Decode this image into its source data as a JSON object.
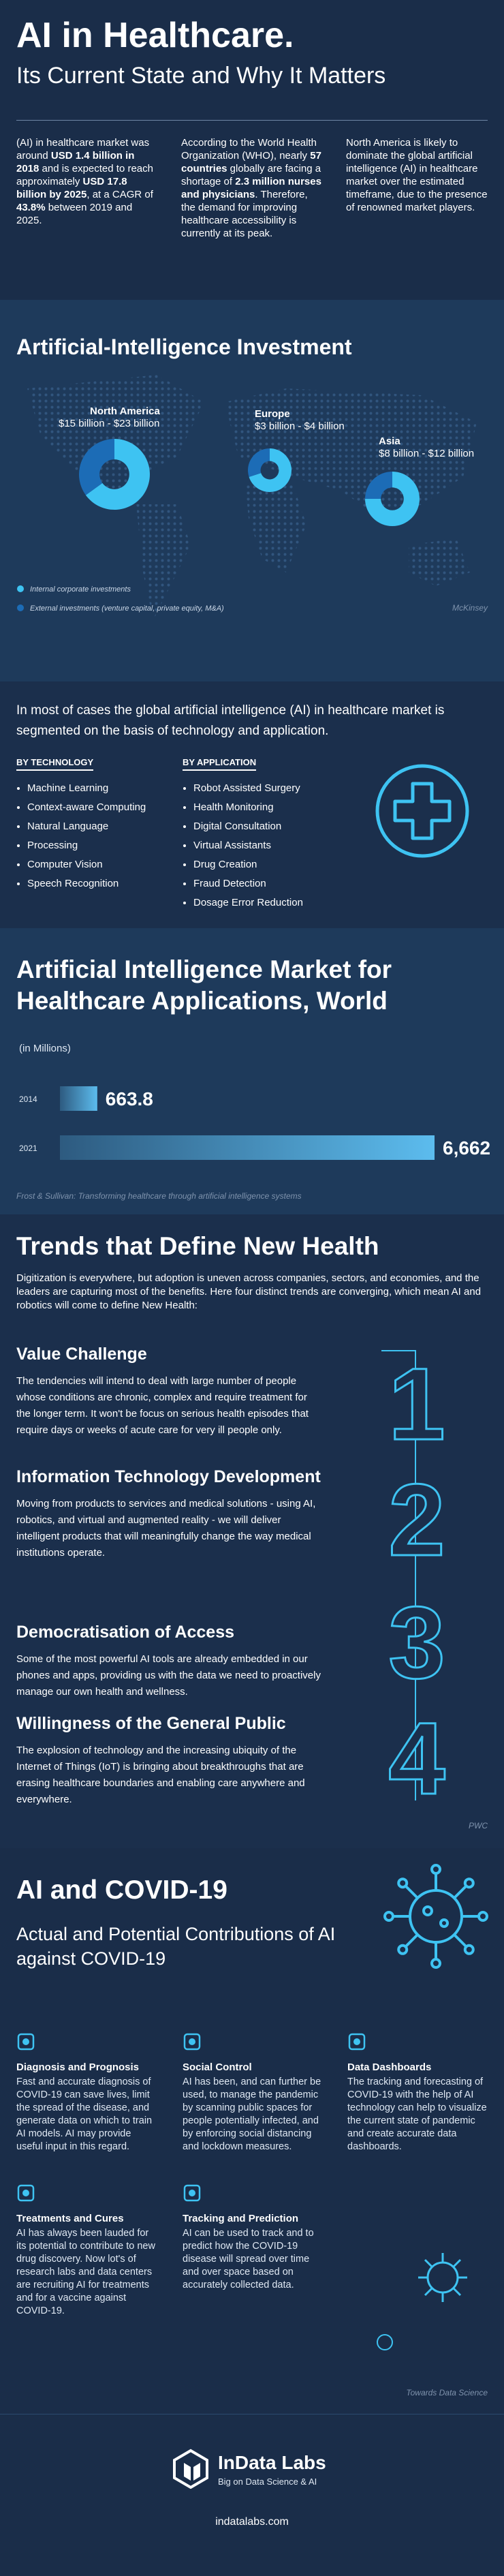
{
  "header": {
    "title": "AI in Healthcare.",
    "subtitle": "Its Current State and Why It Matters"
  },
  "intro": [
    [
      "(AI) in healthcare market was around ",
      "USD 1.4 billion in 2018",
      " and is expected to reach approximately ",
      "USD 17.8 billion by 2025",
      ", at a CAGR of ",
      "43.8%",
      " between 2019 and 2025."
    ],
    [
      "According to the World Health Organization (WHO), nearly ",
      "57 countries",
      " globally are facing a shortage of ",
      "2.3 million nurses and physicians",
      ". Therefore, the demand for improving healthcare accessibility is currently at its peak."
    ],
    [
      "North America is likely to dominate the global artificial intelligence (AI) in healthcare market over the estimated timeframe, due to the presence of renowned market players."
    ]
  ],
  "chart_data": [
    {
      "type": "donut",
      "title": "Artificial-Intelligence Investment",
      "categories": [
        "North America",
        "Europe",
        "Asia"
      ],
      "category_labels": [
        "$15 billion - $23 billion",
        "$3 billion - $4 billion",
        "$8 billion - $12 billion"
      ],
      "series": [
        {
          "name": "Internal corporate investments",
          "color": "#3ec3f2",
          "values": [
            65,
            70,
            75
          ]
        },
        {
          "name": "External investments (venture capital, private equity, M&A)",
          "color": "#1c6cb6",
          "values": [
            35,
            30,
            25
          ]
        }
      ],
      "source": "McKinsey"
    },
    {
      "type": "hbar",
      "title": "Artificial Intelligence Market for Healthcare Applications, World",
      "subtitle": "(in Millions)",
      "categories": [
        "2014",
        "2021"
      ],
      "values": [
        663.8,
        6662
      ],
      "value_labels": [
        "663.8",
        "6,662"
      ],
      "color": "#5cbcee",
      "source": "Frost & Sullivan: Transforming healthcare through artificial intelligence systems"
    }
  ],
  "segmentation": {
    "text": "In most of cases the global artificial intelligence (AI) in healthcare market is segmented on the basis of technology and application.",
    "technology": {
      "heading": "BY TECHNOLOGY",
      "items": [
        "Machine Learning",
        "Context-aware Computing",
        "Natural Language",
        "Processing",
        "Computer Vision",
        "Speech Recognition"
      ]
    },
    "application": {
      "heading": "BY APPLICATION",
      "items": [
        "Robot Assisted Surgery",
        "Health Monitoring",
        "Digital Consultation",
        "Virtual Assistants",
        "Drug Creation",
        "Fraud Detection",
        "Dosage Error Reduction"
      ]
    }
  },
  "trends": {
    "title": "Trends that Define New Health",
    "text": "Digitization is everywhere, but adoption is uneven across companies, sectors, and economies, and the leaders are capturing most of the benefits. Here four distinct trends are converging, which mean AI and robotics will come to define New Health:",
    "items": [
      {
        "number": "1",
        "title": "Value Challenge",
        "text": "The tendencies will intend to deal with large number of people whose conditions are chronic, complex and require treatment for the longer term. It won't be focus on serious health episodes that require days or weeks of acute care for very ill people only."
      },
      {
        "number": "2",
        "title": "Information Technology Development",
        "text": "Moving from products to services and medical solutions - using AI, robotics, and virtual and augmented reality - we will deliver intelligent products that will meaningfully change the way medical institutions operate."
      },
      {
        "number": "3",
        "title": "Democratisation of Access",
        "text": "Some of the most powerful AI tools are already embedded in our phones and apps, providing us with the data we need to proactively manage our own health and wellness."
      },
      {
        "number": "4",
        "title": "Willingness of the General Public",
        "text": "The explosion of technology and the increasing ubiquity of the Internet of Things (IoT) is bringing about breakthroughs that are erasing healthcare boundaries and enabling care anywhere and everywhere."
      }
    ],
    "source": "PWC"
  },
  "covid": {
    "title": "AI and COVID-19",
    "subtitle": "Actual and Potential Contributions of AI against COVID-19",
    "items": [
      {
        "title": "Diagnosis and Prognosis",
        "text": "Fast and accurate diagnosis of COVID-19 can save lives, limit the spread of the disease, and generate data on which to train AI models. AI may provide useful input in this regard."
      },
      {
        "title": "Social Control",
        "text": "AI has been, and can further be used, to manage the pandemic by scanning public spaces for people potentially infected, and by enforcing social distancing and lockdown measures."
      },
      {
        "title": "Data Dashboards",
        "text": "The tracking and forecasting of COVID-19 with the help of AI technology can help to visualize the current state of pandemic and create accurate data dashboards."
      },
      {
        "title": "Treatments and Cures",
        "text": "AI has always been lauded for its potential to contribute to new drug discovery. Now lot's of research labs and data centers are recruiting AI for treatments and for a vaccine against COVID-19."
      },
      {
        "title": "Tracking and Prediction",
        "text": "AI can be used to track and to predict how the COVID-19 disease will spread over time and over space based on accurately collected data."
      }
    ],
    "source": "Towards Data Science"
  },
  "footer": {
    "brand": "InData Labs",
    "tagline": "Big on Data Science & AI",
    "url": "indatalabs.com"
  }
}
